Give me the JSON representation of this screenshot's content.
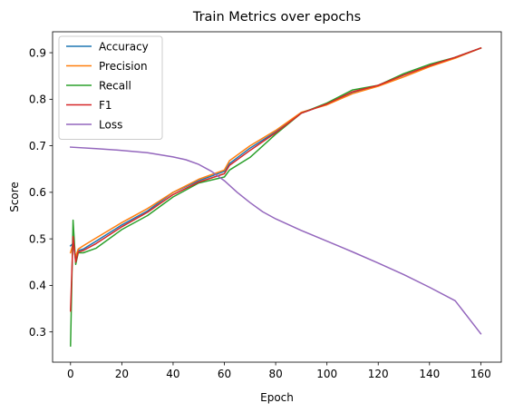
{
  "chart_data": {
    "type": "line",
    "title": "Train Metrics over epochs",
    "xlabel": "Epoch",
    "ylabel": "Score",
    "xlim": [
      -7,
      168
    ],
    "ylim": [
      0.235,
      0.945
    ],
    "xticks": [
      0,
      20,
      40,
      60,
      80,
      100,
      120,
      140,
      160
    ],
    "yticks": [
      0.3,
      0.4,
      0.5,
      0.6,
      0.7,
      0.8,
      0.9
    ],
    "grid": false,
    "legend_position": "top-left",
    "series": [
      {
        "name": "Accuracy",
        "color": "#1f77b4",
        "points": [
          [
            0,
            0.485
          ],
          [
            1,
            0.49
          ],
          [
            2,
            0.455
          ],
          [
            3,
            0.475
          ],
          [
            5,
            0.478
          ],
          [
            10,
            0.495
          ],
          [
            20,
            0.53
          ],
          [
            30,
            0.56
          ],
          [
            40,
            0.6
          ],
          [
            50,
            0.625
          ],
          [
            60,
            0.645
          ],
          [
            62,
            0.662
          ],
          [
            70,
            0.695
          ],
          [
            80,
            0.73
          ],
          [
            90,
            0.77
          ],
          [
            100,
            0.79
          ],
          [
            110,
            0.815
          ],
          [
            120,
            0.83
          ],
          [
            130,
            0.852
          ],
          [
            140,
            0.872
          ],
          [
            150,
            0.89
          ],
          [
            160,
            0.91
          ]
        ]
      },
      {
        "name": "Precision",
        "color": "#ff7f0e",
        "points": [
          [
            0,
            0.47
          ],
          [
            1,
            0.49
          ],
          [
            2,
            0.462
          ],
          [
            3,
            0.478
          ],
          [
            5,
            0.485
          ],
          [
            10,
            0.502
          ],
          [
            20,
            0.535
          ],
          [
            30,
            0.565
          ],
          [
            40,
            0.6
          ],
          [
            50,
            0.628
          ],
          [
            60,
            0.648
          ],
          [
            62,
            0.668
          ],
          [
            70,
            0.7
          ],
          [
            80,
            0.733
          ],
          [
            90,
            0.772
          ],
          [
            100,
            0.788
          ],
          [
            110,
            0.812
          ],
          [
            120,
            0.828
          ],
          [
            130,
            0.848
          ],
          [
            140,
            0.87
          ],
          [
            150,
            0.888
          ],
          [
            160,
            0.91
          ]
        ]
      },
      {
        "name": "Recall",
        "color": "#2ca02c",
        "points": [
          [
            0,
            0.27
          ],
          [
            1,
            0.54
          ],
          [
            2,
            0.445
          ],
          [
            3,
            0.47
          ],
          [
            5,
            0.47
          ],
          [
            10,
            0.48
          ],
          [
            20,
            0.52
          ],
          [
            30,
            0.55
          ],
          [
            40,
            0.59
          ],
          [
            50,
            0.62
          ],
          [
            60,
            0.633
          ],
          [
            62,
            0.648
          ],
          [
            70,
            0.675
          ],
          [
            80,
            0.725
          ],
          [
            90,
            0.77
          ],
          [
            100,
            0.792
          ],
          [
            110,
            0.82
          ],
          [
            120,
            0.83
          ],
          [
            130,
            0.855
          ],
          [
            140,
            0.875
          ],
          [
            150,
            0.89
          ],
          [
            160,
            0.91
          ]
        ]
      },
      {
        "name": "F1",
        "color": "#d62728",
        "points": [
          [
            0,
            0.345
          ],
          [
            1,
            0.505
          ],
          [
            2,
            0.45
          ],
          [
            3,
            0.472
          ],
          [
            5,
            0.475
          ],
          [
            10,
            0.49
          ],
          [
            20,
            0.526
          ],
          [
            30,
            0.557
          ],
          [
            40,
            0.595
          ],
          [
            50,
            0.622
          ],
          [
            60,
            0.64
          ],
          [
            62,
            0.658
          ],
          [
            70,
            0.69
          ],
          [
            80,
            0.728
          ],
          [
            90,
            0.77
          ],
          [
            100,
            0.79
          ],
          [
            110,
            0.816
          ],
          [
            120,
            0.83
          ],
          [
            130,
            0.852
          ],
          [
            140,
            0.872
          ],
          [
            150,
            0.89
          ],
          [
            160,
            0.91
          ]
        ]
      },
      {
        "name": "Loss",
        "color": "#9467bd",
        "points": [
          [
            0,
            0.697
          ],
          [
            10,
            0.694
          ],
          [
            20,
            0.69
          ],
          [
            30,
            0.685
          ],
          [
            40,
            0.676
          ],
          [
            45,
            0.67
          ],
          [
            50,
            0.66
          ],
          [
            55,
            0.645
          ],
          [
            60,
            0.625
          ],
          [
            65,
            0.6
          ],
          [
            70,
            0.578
          ],
          [
            75,
            0.558
          ],
          [
            80,
            0.543
          ],
          [
            90,
            0.518
          ],
          [
            100,
            0.495
          ],
          [
            110,
            0.472
          ],
          [
            120,
            0.448
          ],
          [
            130,
            0.423
          ],
          [
            140,
            0.396
          ],
          [
            150,
            0.367
          ],
          [
            160,
            0.296
          ]
        ]
      }
    ]
  }
}
